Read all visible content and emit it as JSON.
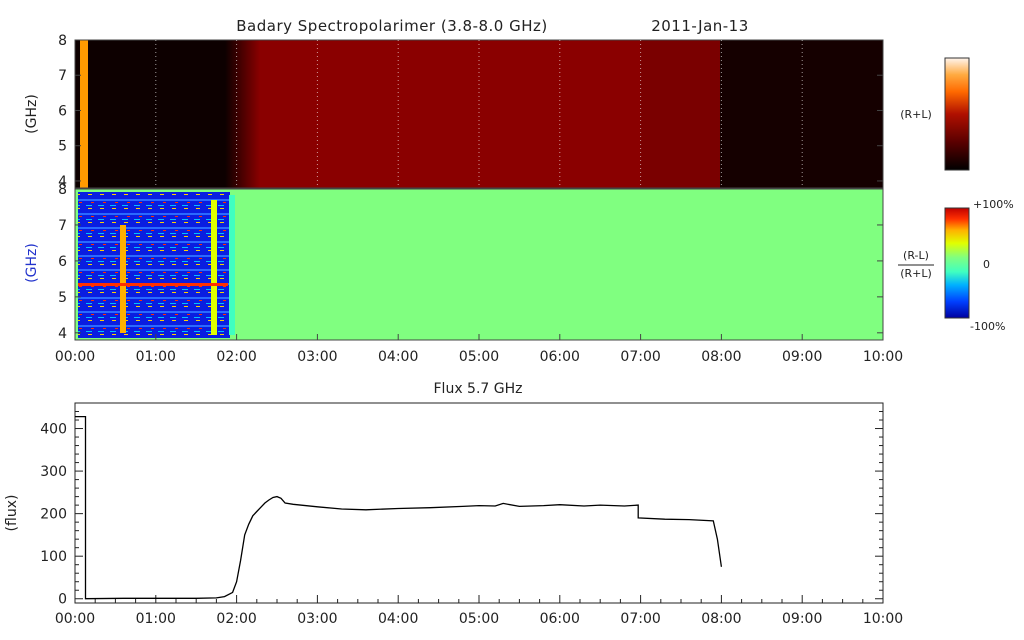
{
  "header": {
    "title": "Badary Spectropolarimer (3.8-8.0 GHz)",
    "date": "2011-Jan-13"
  },
  "time_ticks": [
    "00:00",
    "01:00",
    "02:00",
    "03:00",
    "04:00",
    "05:00",
    "06:00",
    "07:00",
    "08:00",
    "09:00",
    "10:00"
  ],
  "spectrogram_top": {
    "ylabel": "(GHz)",
    "yticks": [
      "4",
      "5",
      "6",
      "7",
      "8"
    ],
    "side_label": "(R+L)",
    "colors": {
      "background_dark": "#0d0000",
      "band": "#8a0000",
      "band_dark": "#7a0000",
      "orange_marker": "#ff9a00"
    }
  },
  "spectrogram_bottom": {
    "ylabel": "(GHz)",
    "yticks": [
      "4",
      "5",
      "6",
      "7",
      "8"
    ],
    "side_label_numerator": "(R-L)",
    "side_label_denominator": "(R+L)",
    "colorbar_labels": {
      "top": "+100%",
      "mid": "0",
      "bottom": "-100%"
    },
    "colors": {
      "background": "#80ff80"
    }
  },
  "chart_data": {
    "type": "line",
    "title": "Flux 5.7 GHz",
    "xlabel": "",
    "ylabel": "(flux)",
    "xlim": [
      0,
      10
    ],
    "ylim": [
      -10,
      460
    ],
    "yticks": [
      0,
      100,
      200,
      300,
      400
    ],
    "x_units": "hours UT",
    "series": [
      {
        "x": [
          0.0,
          0.13,
          0.13,
          0.6,
          1.5,
          1.75,
          1.85,
          1.95,
          2.0,
          2.05,
          2.1,
          2.15,
          2.2,
          2.25,
          2.3,
          2.35,
          2.4,
          2.45,
          2.5,
          2.55,
          2.6,
          2.7,
          3.0,
          3.3,
          3.6,
          4.0,
          4.4,
          4.8,
          5.0,
          5.2,
          5.3,
          5.5,
          5.8,
          6.0,
          6.3,
          6.5,
          6.8,
          6.97,
          6.97,
          7.3,
          7.6,
          7.9,
          7.95,
          8.0
        ],
        "y": [
          428,
          428,
          0,
          1,
          1,
          2,
          5,
          15,
          40,
          90,
          150,
          175,
          195,
          205,
          215,
          225,
          232,
          238,
          240,
          236,
          225,
          222,
          216,
          211,
          209,
          212,
          214,
          217,
          219,
          218,
          224,
          217,
          219,
          221,
          218,
          220,
          218,
          220,
          190,
          187,
          186,
          183,
          140,
          75
        ]
      }
    ]
  }
}
